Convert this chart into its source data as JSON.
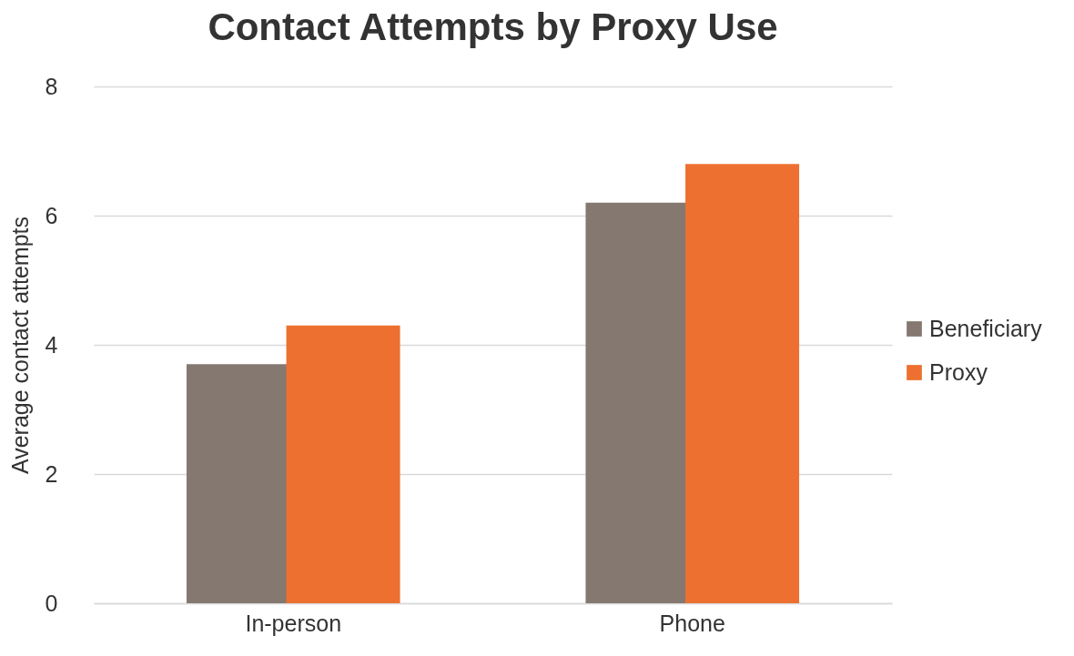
{
  "chart_data": {
    "type": "bar",
    "title": "Contact Attempts by Proxy Use",
    "ylabel": "Average contact attempts",
    "categories": [
      "In-person",
      "Phone"
    ],
    "series": [
      {
        "name": "Beneficiary",
        "color": "#857870",
        "values": [
          3.7,
          6.2
        ]
      },
      {
        "name": "Proxy",
        "color": "#ed7030",
        "values": [
          4.3,
          6.8
        ]
      }
    ],
    "ylim": [
      0,
      8
    ],
    "yticks": [
      0,
      2,
      4,
      6,
      8
    ],
    "grid": "y",
    "legend": "right"
  }
}
